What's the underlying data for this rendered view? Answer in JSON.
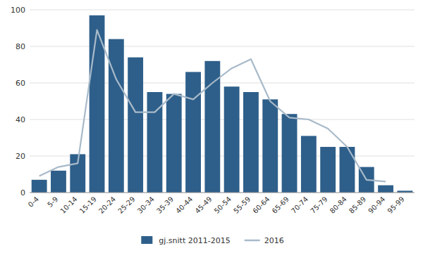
{
  "chart_data": {
    "type": "bar",
    "categories": [
      "0-4",
      "5-9",
      "10-14",
      "15-19",
      "20-24",
      "25-29",
      "30-34",
      "35-39",
      "40-44",
      "45-49",
      "50-54",
      "55-59",
      "60-64",
      "65-69",
      "70-74",
      "75-79",
      "80-84",
      "85-89",
      "90-94",
      "95-99"
    ],
    "series": [
      {
        "name": "gj.snitt 2011-2015",
        "type": "bar",
        "color": "#2E5F8A",
        "values": [
          7,
          12,
          21,
          97,
          84,
          74,
          55,
          54,
          66,
          72,
          58,
          55,
          51,
          43,
          31,
          25,
          25,
          14,
          4,
          1
        ]
      },
      {
        "name": "2016",
        "type": "line",
        "color": "#A8BAC9",
        "values": [
          9,
          14,
          16,
          89,
          62,
          44,
          44,
          54,
          51,
          60,
          68,
          73,
          50,
          41,
          40,
          35,
          25,
          7,
          6,
          null
        ]
      }
    ],
    "ylim": [
      0,
      100
    ],
    "yticks": [
      0,
      20,
      40,
      60,
      80,
      100
    ],
    "grid": true,
    "legend": "bottom"
  }
}
